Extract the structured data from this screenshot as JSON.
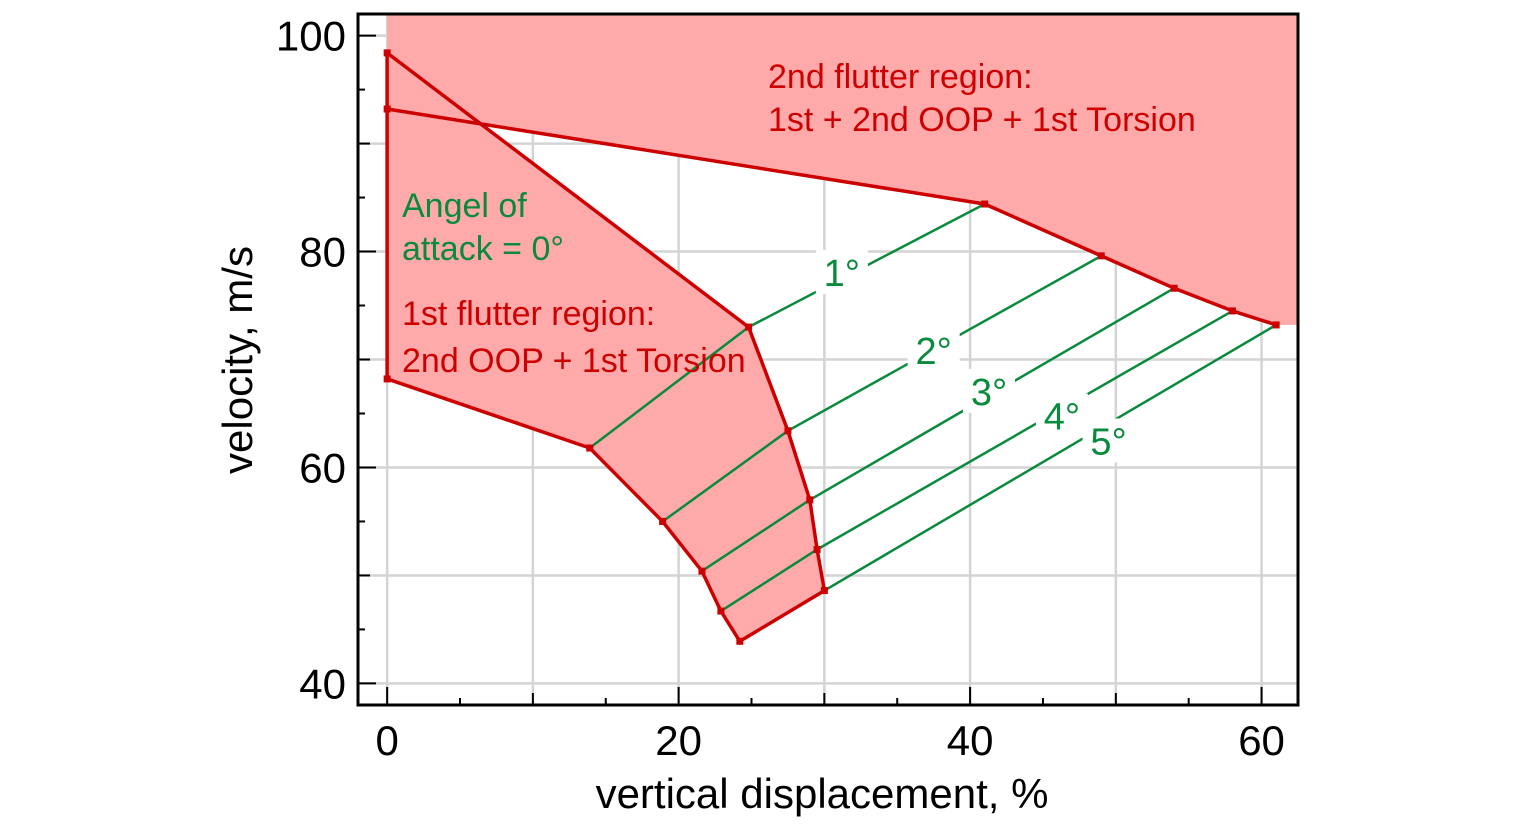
{
  "chart_data": {
    "type": "line",
    "xlabel": "vertical displacement, %",
    "ylabel": "velocity, m/s",
    "xlim": [
      -2,
      62.5
    ],
    "ylim": [
      38,
      102
    ],
    "xticks": [
      0,
      20,
      40,
      60
    ],
    "yticks": [
      40,
      60,
      80,
      100
    ],
    "grid": true,
    "colors": {
      "boundary": "#cc0000",
      "fill": "#ffaaaa",
      "angle_lines": "#0a8a3c",
      "grid": "#d4d4d4",
      "axis": "#000000"
    },
    "boundary_2nd_region": {
      "name": "2nd flutter region",
      "points": [
        [
          0,
          93.2
        ],
        [
          41,
          84.4
        ],
        [
          49,
          79.6
        ],
        [
          54,
          76.6
        ],
        [
          58,
          74.5
        ],
        [
          61,
          73.2
        ]
      ]
    },
    "boundary_1st_region": {
      "name": "1st flutter region",
      "points": [
        [
          0,
          98.4
        ],
        [
          24.8,
          73.0
        ],
        [
          27.5,
          63.4
        ],
        [
          29,
          57.0
        ],
        [
          29.5,
          52.4
        ],
        [
          30,
          48.6
        ],
        [
          24.2,
          43.9
        ],
        [
          22.9,
          46.7
        ],
        [
          21.6,
          50.4
        ],
        [
          18.9,
          55.0
        ],
        [
          13.9,
          61.8
        ],
        [
          0,
          68.2
        ]
      ]
    },
    "angle_of_attack_lines": [
      {
        "label": "1°",
        "points": [
          [
            13.9,
            61.8
          ],
          [
            24.8,
            73.0
          ],
          [
            41,
            84.4
          ]
        ]
      },
      {
        "label": "2°",
        "points": [
          [
            18.9,
            55.0
          ],
          [
            27.5,
            63.4
          ],
          [
            49,
            79.6
          ]
        ]
      },
      {
        "label": "3°",
        "points": [
          [
            21.6,
            50.4
          ],
          [
            29,
            57.0
          ],
          [
            54,
            76.6
          ]
        ]
      },
      {
        "label": "4°",
        "points": [
          [
            22.9,
            46.7
          ],
          [
            29.5,
            52.4
          ],
          [
            58,
            74.5
          ]
        ]
      },
      {
        "label": "5°",
        "points": [
          [
            24.2,
            43.9
          ],
          [
            30,
            48.6
          ],
          [
            61,
            73.2
          ]
        ]
      }
    ],
    "zero_angle_line": {
      "x": 0,
      "y_range": [
        68.2,
        98.4
      ]
    },
    "annotations": {
      "region2_line1": "2nd flutter region:",
      "region2_line2": "1st + 2nd OOP + 1st Torsion",
      "angle_line1": "Angel of",
      "angle_line2": "attack = 0°",
      "region1_line1": "1st flutter region:",
      "region1_line2": "2nd OOP + 1st Torsion"
    }
  }
}
